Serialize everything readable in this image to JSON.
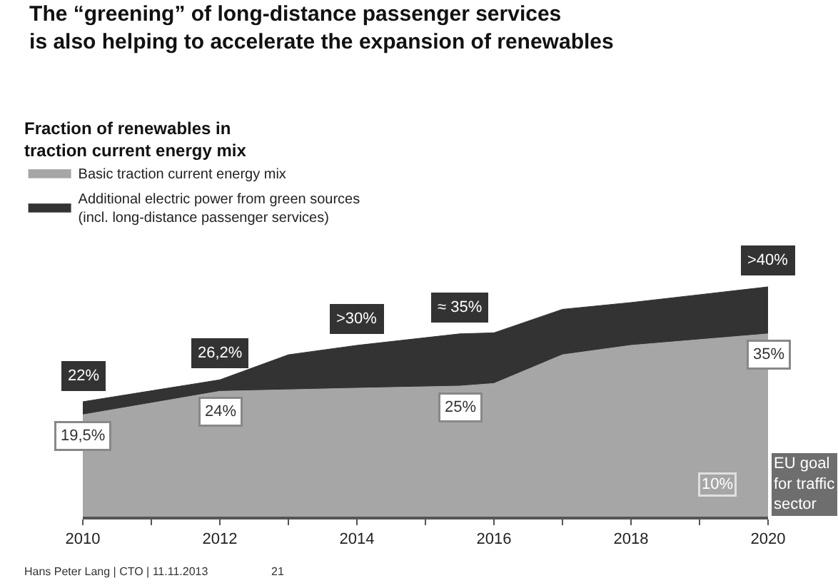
{
  "chart_data": {
    "type": "area",
    "title": "The “greening” of long-distance passenger services\nis also helping to accelerate the expansion of renewables",
    "subtitle": "Fraction of renewables in\ntraction current energy mix",
    "stacked": false,
    "x": [
      2010,
      2012,
      2013,
      2014,
      2015.5,
      2016,
      2017,
      2018,
      2020
    ],
    "xlim": [
      2010,
      2020
    ],
    "xticks": [
      2010,
      {
        "value": 2011,
        "label": null
      },
      2012,
      {
        "value": 2013,
        "label": null
      },
      2014,
      {
        "value": 2015,
        "label": null
      },
      2016,
      {
        "value": 2017,
        "label": null
      },
      2018,
      {
        "value": 2019,
        "label": null
      },
      2020
    ],
    "series": [
      {
        "name": "Basic traction current energy mix",
        "color": "#a6a6a6",
        "values": [
          19.5,
          24,
          24.3,
          24.6,
          25,
          25.5,
          31,
          32.8,
          35
        ],
        "value_labels": [
          "19,5%",
          "24%",
          null,
          null,
          "25%",
          null,
          null,
          null,
          "35%"
        ]
      },
      {
        "name": "Additional electric power from green sources\n(incl. long-distance passenger services)",
        "color": "#333333",
        "values": [
          22,
          26.2,
          31,
          32.8,
          35,
          35.2,
          39.7,
          41,
          44
        ],
        "value_labels": [
          "22%",
          "26,2%",
          null,
          ">30%",
          "≈ 35%",
          null,
          null,
          null,
          ">40%"
        ]
      }
    ],
    "annotations": [
      "10%",
      "EU goal\nfor traffic\nsector",
      "Hans Peter Lang | CTO | 11.11.2013",
      "21"
    ],
    "legend": "top left"
  }
}
